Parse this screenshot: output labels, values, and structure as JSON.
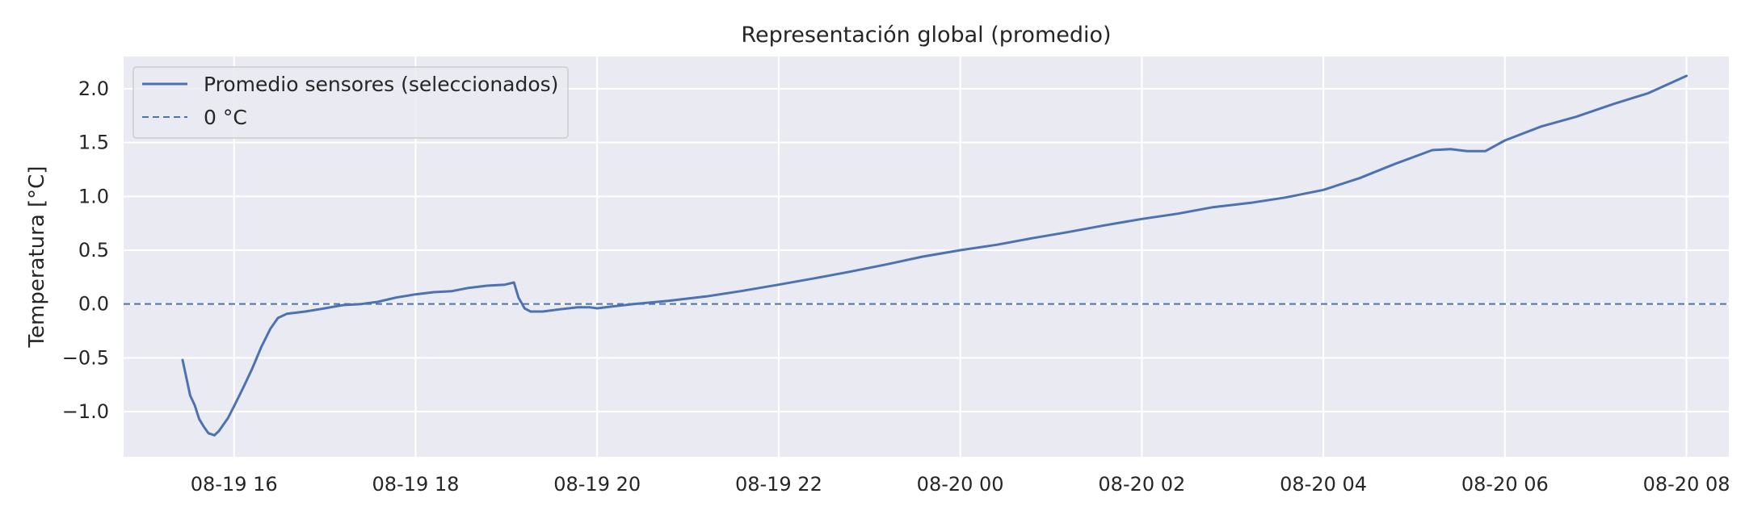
{
  "chart_data": {
    "type": "line",
    "title": "Representación global (promedio)",
    "xlabel": "",
    "ylabel": "Temperatura [°C]",
    "ylim": [
      -1.42,
      2.3
    ],
    "xlim": [
      "2025-08-19 14:47",
      "2025-08-20 08:28"
    ],
    "yticks": [
      -1.0,
      -0.5,
      0.0,
      0.5,
      1.0,
      1.5,
      2.0
    ],
    "ytick_labels": [
      "−1.0",
      "−0.5",
      "0.0",
      "0.5",
      "1.0",
      "1.5",
      "2.0"
    ],
    "xticks": [
      "2025-08-19 16:00",
      "2025-08-19 18:00",
      "2025-08-19 20:00",
      "2025-08-19 22:00",
      "2025-08-20 00:00",
      "2025-08-20 02:00",
      "2025-08-20 04:00",
      "2025-08-20 06:00",
      "2025-08-20 08:00"
    ],
    "xtick_labels": [
      "08-19 16",
      "08-19 18",
      "08-19 20",
      "08-19 22",
      "08-20 00",
      "08-20 02",
      "08-20 04",
      "08-20 06",
      "08-20 08"
    ],
    "grid": true,
    "legend_position": "top-left",
    "series": [
      {
        "name": "Promedio sensores (seleccionados)",
        "color": "#4c72b0",
        "style": "solid",
        "points": [
          [
            "2025-08-19 15:26",
            -0.52
          ],
          [
            "2025-08-19 15:29",
            -0.72
          ],
          [
            "2025-08-19 15:31",
            -0.85
          ],
          [
            "2025-08-19 15:34",
            -0.94
          ],
          [
            "2025-08-19 15:37",
            -1.07
          ],
          [
            "2025-08-19 15:40",
            -1.14
          ],
          [
            "2025-08-19 15:43",
            -1.2
          ],
          [
            "2025-08-19 15:47",
            -1.22
          ],
          [
            "2025-08-19 15:50",
            -1.18
          ],
          [
            "2025-08-19 15:53",
            -1.12
          ],
          [
            "2025-08-19 15:56",
            -1.06
          ],
          [
            "2025-08-19 16:00",
            -0.95
          ],
          [
            "2025-08-19 16:06",
            -0.78
          ],
          [
            "2025-08-19 16:12",
            -0.6
          ],
          [
            "2025-08-19 16:18",
            -0.4
          ],
          [
            "2025-08-19 16:24",
            -0.23
          ],
          [
            "2025-08-19 16:29",
            -0.13
          ],
          [
            "2025-08-19 16:35",
            -0.09
          ],
          [
            "2025-08-19 16:47",
            -0.07
          ],
          [
            "2025-08-19 17:00",
            -0.04
          ],
          [
            "2025-08-19 17:12",
            -0.01
          ],
          [
            "2025-08-19 17:24",
            0.0
          ],
          [
            "2025-08-19 17:35",
            0.02
          ],
          [
            "2025-08-19 17:47",
            0.06
          ],
          [
            "2025-08-19 18:00",
            0.09
          ],
          [
            "2025-08-19 18:12",
            0.11
          ],
          [
            "2025-08-19 18:24",
            0.12
          ],
          [
            "2025-08-19 18:35",
            0.15
          ],
          [
            "2025-08-19 18:47",
            0.17
          ],
          [
            "2025-08-19 18:59",
            0.18
          ],
          [
            "2025-08-19 19:05",
            0.2
          ],
          [
            "2025-08-19 19:08",
            0.06
          ],
          [
            "2025-08-19 19:12",
            -0.04
          ],
          [
            "2025-08-19 19:16",
            -0.07
          ],
          [
            "2025-08-19 19:24",
            -0.07
          ],
          [
            "2025-08-19 19:35",
            -0.05
          ],
          [
            "2025-08-19 19:47",
            -0.03
          ],
          [
            "2025-08-19 19:55",
            -0.03
          ],
          [
            "2025-08-19 20:00",
            -0.04
          ],
          [
            "2025-08-19 20:12",
            -0.02
          ],
          [
            "2025-08-19 20:24",
            0.0
          ],
          [
            "2025-08-19 20:47",
            0.03
          ],
          [
            "2025-08-19 21:12",
            0.07
          ],
          [
            "2025-08-19 21:35",
            0.12
          ],
          [
            "2025-08-19 22:00",
            0.18
          ],
          [
            "2025-08-19 22:24",
            0.24
          ],
          [
            "2025-08-19 22:47",
            0.3
          ],
          [
            "2025-08-19 23:12",
            0.37
          ],
          [
            "2025-08-19 23:35",
            0.44
          ],
          [
            "2025-08-20 00:00",
            0.5
          ],
          [
            "2025-08-20 00:24",
            0.55
          ],
          [
            "2025-08-20 00:47",
            0.61
          ],
          [
            "2025-08-20 01:12",
            0.67
          ],
          [
            "2025-08-20 01:35",
            0.73
          ],
          [
            "2025-08-20 02:00",
            0.79
          ],
          [
            "2025-08-20 02:24",
            0.84
          ],
          [
            "2025-08-20 02:47",
            0.9
          ],
          [
            "2025-08-20 03:12",
            0.94
          ],
          [
            "2025-08-20 03:35",
            0.99
          ],
          [
            "2025-08-20 04:00",
            1.06
          ],
          [
            "2025-08-20 04:24",
            1.17
          ],
          [
            "2025-08-20 04:47",
            1.3
          ],
          [
            "2025-08-20 05:12",
            1.43
          ],
          [
            "2025-08-20 05:24",
            1.44
          ],
          [
            "2025-08-20 05:35",
            1.42
          ],
          [
            "2025-08-20 05:47",
            1.42
          ],
          [
            "2025-08-20 06:00",
            1.52
          ],
          [
            "2025-08-20 06:24",
            1.65
          ],
          [
            "2025-08-20 06:47",
            1.74
          ],
          [
            "2025-08-20 07:12",
            1.86
          ],
          [
            "2025-08-20 07:35",
            1.96
          ],
          [
            "2025-08-20 08:00",
            2.12
          ]
        ]
      },
      {
        "name": "0 °C",
        "color": "#4c72b0",
        "style": "dashed",
        "y": 0
      }
    ]
  }
}
